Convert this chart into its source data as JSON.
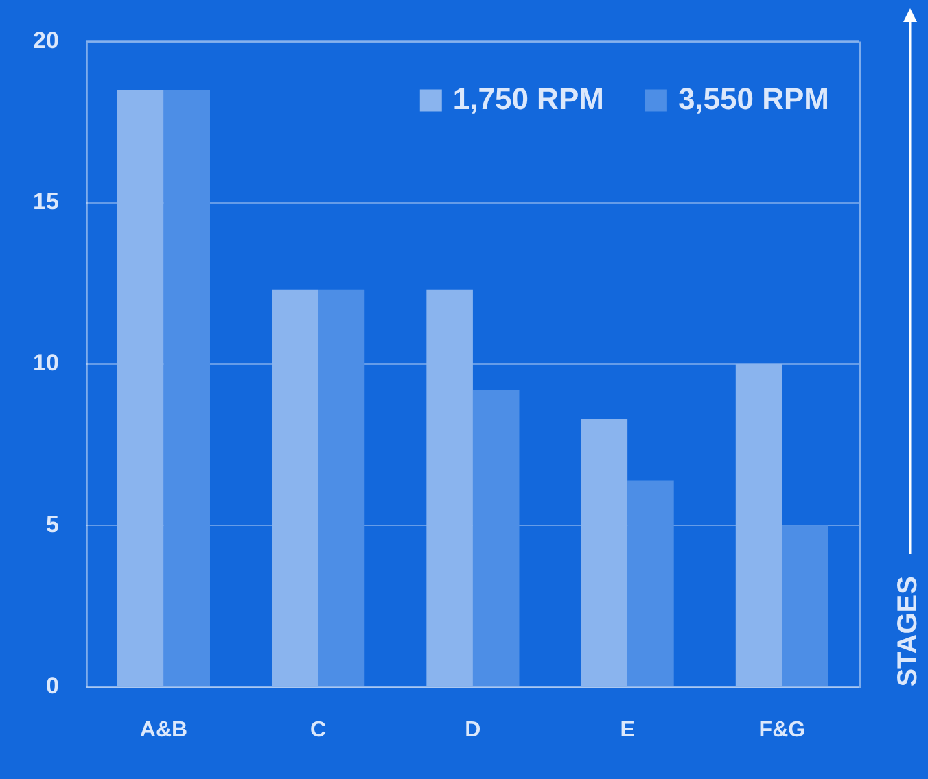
{
  "chart_data": {
    "type": "bar",
    "ylabel": "STAGES",
    "categories": [
      "A&B",
      "C",
      "D",
      "E",
      "F&G"
    ],
    "series": [
      {
        "name": "1,750 RPM",
        "color": "#8ab4ee",
        "values": [
          18.5,
          12.3,
          12.3,
          8.3,
          10
        ]
      },
      {
        "name": "3,550 RPM",
        "color": "#4d8ee6",
        "values": [
          18.5,
          12.3,
          9.2,
          6.4,
          5
        ]
      }
    ],
    "ylim": [
      0,
      20
    ],
    "yticks": [
      0,
      5,
      10,
      15,
      20
    ],
    "grid": "y",
    "legend": "top right"
  }
}
